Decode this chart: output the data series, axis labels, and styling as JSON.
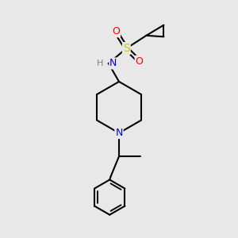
{
  "background_color": "#e8e8e8",
  "atom_colors": {
    "N": "#0000ff",
    "S": "#cccc00",
    "O": "#ff0000",
    "C": "#000000",
    "H": "#808080"
  },
  "bond_color": "#000000",
  "bond_width": 1.5,
  "figsize": [
    3.0,
    3.0
  ],
  "dpi": 100,
  "xlim": [
    0,
    10
  ],
  "ylim": [
    0,
    10
  ]
}
